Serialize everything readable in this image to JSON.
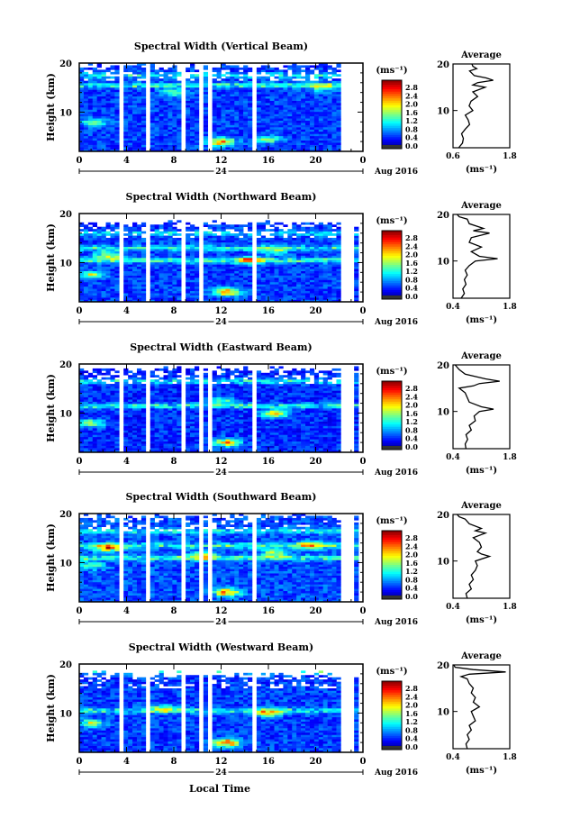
{
  "figure": {
    "xlabel": "Local Time",
    "date_label": "Aug 2016",
    "day_marker": "24",
    "ylabel": "Height (km)",
    "colorbar_unit": "(ms⁻¹)",
    "avg_title": "Average",
    "avg_xlabel": "(ms⁻¹)"
  },
  "chart_data": [
    {
      "type": "heatmap",
      "title": "Spectral Width (Vertical Beam)",
      "xlabel": "",
      "ylabel": "Height (km)",
      "x_ticks": [
        "0",
        "4",
        "8",
        "12",
        "16",
        "20",
        "0"
      ],
      "xlim": [
        0,
        24
      ],
      "ylim": [
        2,
        20
      ],
      "y_ticks": [
        "20",
        "10"
      ],
      "colorbar_ticks": [
        "2.8",
        "2.4",
        "2.0",
        "1.6",
        "1.2",
        "0.8",
        "0.4",
        "0.0"
      ],
      "colorbar_range": [
        0,
        3.0
      ],
      "gaps_hours": [
        [
          3.4,
          3.8
        ],
        [
          5.8,
          6.1
        ],
        [
          8.8,
          9.1
        ],
        [
          10.0,
          10.4
        ],
        [
          11.0,
          11.4
        ],
        [
          14.8,
          15.1
        ],
        [
          17.5,
          17.8
        ],
        [
          22.0,
          24.0
        ]
      ],
      "top_km": 19.5,
      "base": 0.55,
      "hot_spots": [
        {
          "t": 12.0,
          "h": 4.0,
          "v": 2.6
        },
        {
          "t": 16.0,
          "h": 4.5,
          "v": 1.6
        },
        {
          "t": 1.2,
          "h": 8.0,
          "v": 1.6
        },
        {
          "t": 8.0,
          "h": 14.0,
          "v": 1.4
        },
        {
          "t": 20.5,
          "h": 15.0,
          "v": 1.5
        }
      ],
      "layers": [
        {
          "h": 15.5,
          "v": 1.4
        },
        {
          "h": 17.5,
          "v": 1.1
        }
      ],
      "average": {
        "xlim": [
          0.6,
          1.8
        ],
        "x_ticks": [
          "0.6",
          "1.8"
        ],
        "y_ticks": [
          "20",
          "10"
        ],
        "profile": [
          [
            2,
            0.72
          ],
          [
            3,
            0.8
          ],
          [
            4,
            0.82
          ],
          [
            5,
            0.78
          ],
          [
            6,
            0.86
          ],
          [
            7,
            0.95
          ],
          [
            8,
            0.92
          ],
          [
            9,
            0.86
          ],
          [
            10,
            1.02
          ],
          [
            11,
            0.94
          ],
          [
            12,
            0.98
          ],
          [
            13,
            1.12
          ],
          [
            14,
            1.02
          ],
          [
            15,
            1.28
          ],
          [
            15.5,
            1.02
          ],
          [
            16,
            1.12
          ],
          [
            16.5,
            1.45
          ],
          [
            17,
            1.3
          ],
          [
            17.5,
            1.05
          ],
          [
            18,
            1.0
          ],
          [
            18.5,
            0.95
          ],
          [
            19,
            1.1
          ],
          [
            19.5,
            1.02
          ],
          [
            20,
            1.0
          ]
        ]
      }
    },
    {
      "type": "heatmap",
      "title": "Spectral Width (Northward Beam)",
      "xlabel": "",
      "ylabel": "Height (km)",
      "x_ticks": [
        "0",
        "4",
        "8",
        "12",
        "16",
        "20",
        "0"
      ],
      "xlim": [
        0,
        24
      ],
      "ylim": [
        2,
        20
      ],
      "y_ticks": [
        "20",
        "10"
      ],
      "colorbar_ticks": [
        "2.8",
        "2.4",
        "2.0",
        "1.6",
        "1.2",
        "0.8",
        "0.4",
        "0.0"
      ],
      "colorbar_range": [
        0,
        3.0
      ],
      "gaps_hours": [
        [
          3.4,
          3.8
        ],
        [
          5.8,
          6.1
        ],
        [
          8.8,
          9.1
        ],
        [
          10.0,
          10.4
        ],
        [
          14.8,
          15.1
        ],
        [
          17.5,
          17.8
        ],
        [
          22.0,
          23.2
        ],
        [
          23.8,
          24.0
        ]
      ],
      "top_km": 18.0,
      "base": 0.55,
      "hot_spots": [
        {
          "t": 12.5,
          "h": 4.0,
          "v": 2.6
        },
        {
          "t": 14.5,
          "h": 10.5,
          "v": 2.0
        },
        {
          "t": 1.0,
          "h": 7.5,
          "v": 1.8
        },
        {
          "t": 2.5,
          "h": 11.5,
          "v": 1.9
        },
        {
          "t": 16.5,
          "h": 12.5,
          "v": 1.6
        }
      ],
      "layers": [
        {
          "h": 10.5,
          "v": 1.5
        },
        {
          "h": 13.0,
          "v": 1.2
        },
        {
          "h": 16.0,
          "v": 1.0
        }
      ],
      "average": {
        "xlim": [
          0.4,
          1.8
        ],
        "x_ticks": [
          "0.4",
          "1.8"
        ],
        "y_ticks": [
          "20",
          "10"
        ],
        "profile": [
          [
            2,
            0.6
          ],
          [
            3,
            0.68
          ],
          [
            4,
            0.64
          ],
          [
            5,
            0.72
          ],
          [
            6,
            0.68
          ],
          [
            7,
            0.75
          ],
          [
            8,
            0.7
          ],
          [
            9,
            0.8
          ],
          [
            10,
            0.95
          ],
          [
            10.5,
            1.5
          ],
          [
            11,
            1.05
          ],
          [
            12,
            0.85
          ],
          [
            13,
            1.1
          ],
          [
            14,
            0.8
          ],
          [
            15,
            0.85
          ],
          [
            16,
            1.3
          ],
          [
            16.5,
            0.9
          ],
          [
            17,
            1.15
          ],
          [
            18,
            0.8
          ],
          [
            19,
            0.75
          ],
          [
            19.5,
            0.55
          ],
          [
            20,
            0.5
          ]
        ]
      }
    },
    {
      "type": "heatmap",
      "title": "Spectral Width (Eastward Beam)",
      "xlabel": "",
      "ylabel": "Height (km)",
      "x_ticks": [
        "0",
        "4",
        "8",
        "12",
        "16",
        "20",
        "0"
      ],
      "xlim": [
        0,
        24
      ],
      "ylim": [
        2,
        20
      ],
      "y_ticks": [
        "20",
        "10"
      ],
      "colorbar_ticks": [
        "2.8",
        "2.4",
        "2.0",
        "1.6",
        "1.2",
        "0.8",
        "0.4",
        "0.0"
      ],
      "colorbar_range": [
        0,
        3.0
      ],
      "gaps_hours": [
        [
          3.4,
          3.8
        ],
        [
          5.8,
          6.1
        ],
        [
          8.8,
          9.1
        ],
        [
          10.0,
          10.4
        ],
        [
          11.0,
          11.4
        ],
        [
          14.8,
          15.1
        ],
        [
          17.5,
          17.8
        ],
        [
          22.0,
          23.2
        ],
        [
          23.8,
          24.0
        ]
      ],
      "top_km": 19.0,
      "base": 0.5,
      "hot_spots": [
        {
          "t": 12.5,
          "h": 4.0,
          "v": 2.4
        },
        {
          "t": 16.5,
          "h": 10.0,
          "v": 2.2
        },
        {
          "t": 1.0,
          "h": 8.0,
          "v": 1.8
        },
        {
          "t": 12.0,
          "h": 12.5,
          "v": 1.5
        }
      ],
      "layers": [
        {
          "h": 11.5,
          "v": 1.3
        },
        {
          "h": 16.5,
          "v": 1.2
        }
      ],
      "average": {
        "xlim": [
          0.4,
          1.8
        ],
        "x_ticks": [
          "0.4",
          "1.8"
        ],
        "y_ticks": [
          "20",
          "10"
        ],
        "profile": [
          [
            2,
            0.72
          ],
          [
            3,
            0.7
          ],
          [
            4,
            0.76
          ],
          [
            5,
            0.72
          ],
          [
            6,
            0.85
          ],
          [
            7,
            0.8
          ],
          [
            8,
            0.95
          ],
          [
            9,
            0.92
          ],
          [
            10,
            1.05
          ],
          [
            10.5,
            1.4
          ],
          [
            11,
            1.1
          ],
          [
            12,
            0.8
          ],
          [
            13,
            0.75
          ],
          [
            14,
            0.7
          ],
          [
            15,
            0.55
          ],
          [
            15.5,
            0.9
          ],
          [
            16,
            1.05
          ],
          [
            16.5,
            1.55
          ],
          [
            17,
            1.2
          ],
          [
            18,
            0.7
          ],
          [
            19,
            0.55
          ],
          [
            20,
            0.45
          ]
        ]
      }
    },
    {
      "type": "heatmap",
      "title": "Spectral Width (Southward Beam)",
      "xlabel": "",
      "ylabel": "Height (km)",
      "x_ticks": [
        "0",
        "4",
        "8",
        "12",
        "16",
        "20",
        "0"
      ],
      "xlim": [
        0,
        24
      ],
      "ylim": [
        2,
        20
      ],
      "y_ticks": [
        "20",
        "10"
      ],
      "colorbar_ticks": [
        "2.8",
        "2.4",
        "2.0",
        "1.6",
        "1.2",
        "0.8",
        "0.4",
        "0.0"
      ],
      "colorbar_range": [
        0,
        3.0
      ],
      "gaps_hours": [
        [
          3.4,
          3.8
        ],
        [
          5.8,
          6.1
        ],
        [
          8.8,
          9.1
        ],
        [
          10.0,
          10.4
        ],
        [
          11.0,
          11.4
        ],
        [
          14.8,
          15.1
        ],
        [
          17.5,
          17.8
        ],
        [
          22.0,
          23.2
        ],
        [
          23.8,
          24.0
        ]
      ],
      "top_km": 19.5,
      "base": 0.6,
      "hot_spots": [
        {
          "t": 12.5,
          "h": 4.0,
          "v": 2.4
        },
        {
          "t": 2.5,
          "h": 13.0,
          "v": 2.3
        },
        {
          "t": 19.5,
          "h": 13.5,
          "v": 1.9
        },
        {
          "t": 10.5,
          "h": 11.5,
          "v": 1.9
        },
        {
          "t": 16.5,
          "h": 12.0,
          "v": 1.8
        },
        {
          "t": 1.0,
          "h": 9.5,
          "v": 1.5
        }
      ],
      "layers": [
        {
          "h": 11.0,
          "v": 1.3
        },
        {
          "h": 13.5,
          "v": 1.3
        },
        {
          "h": 16.5,
          "v": 1.1
        }
      ],
      "average": {
        "xlim": [
          0.4,
          1.8
        ],
        "x_ticks": [
          "0.4",
          "1.8"
        ],
        "y_ticks": [
          "20",
          "10"
        ],
        "profile": [
          [
            2,
            0.75
          ],
          [
            3,
            0.72
          ],
          [
            4,
            0.85
          ],
          [
            5,
            0.8
          ],
          [
            6,
            0.9
          ],
          [
            7,
            0.85
          ],
          [
            8,
            0.95
          ],
          [
            9,
            1.0
          ],
          [
            10,
            0.95
          ],
          [
            11,
            1.3
          ],
          [
            11.5,
            1.1
          ],
          [
            12,
            1.0
          ],
          [
            13,
            1.1
          ],
          [
            14,
            1.05
          ],
          [
            15,
            0.9
          ],
          [
            16,
            1.2
          ],
          [
            16.5,
            0.95
          ],
          [
            17,
            1.1
          ],
          [
            18,
            0.8
          ],
          [
            19,
            0.7
          ],
          [
            19.5,
            0.55
          ],
          [
            20,
            0.5
          ]
        ]
      }
    },
    {
      "type": "heatmap",
      "title": "Spectral Width (Westward Beam)",
      "xlabel": "Local Time",
      "ylabel": "Height (km)",
      "x_ticks": [
        "0",
        "4",
        "8",
        "12",
        "16",
        "20",
        "0"
      ],
      "xlim": [
        0,
        24
      ],
      "ylim": [
        2,
        20
      ],
      "y_ticks": [
        "20",
        "10"
      ],
      "colorbar_ticks": [
        "2.8",
        "2.4",
        "2.0",
        "1.6",
        "1.2",
        "0.8",
        "0.4",
        "0.0"
      ],
      "colorbar_range": [
        0,
        3.0
      ],
      "gaps_hours": [
        [
          3.4,
          3.8
        ],
        [
          5.8,
          6.1
        ],
        [
          8.8,
          9.1
        ],
        [
          10.0,
          10.4
        ],
        [
          11.0,
          11.4
        ],
        [
          14.8,
          15.1
        ],
        [
          17.5,
          17.8
        ],
        [
          22.0,
          23.2
        ],
        [
          23.8,
          24.0
        ]
      ],
      "top_km": 18.0,
      "base": 0.55,
      "hot_spots": [
        {
          "t": 12.5,
          "h": 4.0,
          "v": 2.6
        },
        {
          "t": 16.0,
          "h": 10.0,
          "v": 2.0
        },
        {
          "t": 1.0,
          "h": 8.0,
          "v": 1.8
        },
        {
          "t": 7.0,
          "h": 11.0,
          "v": 1.6
        }
      ],
      "layers": [
        {
          "h": 10.5,
          "v": 1.3
        },
        {
          "h": 18.5,
          "v": 1.3
        }
      ],
      "average": {
        "xlim": [
          0.4,
          1.8
        ],
        "x_ticks": [
          "0.4",
          "1.8"
        ],
        "y_ticks": [
          "20",
          "10"
        ],
        "profile": [
          [
            2,
            0.75
          ],
          [
            3,
            0.72
          ],
          [
            4,
            0.8
          ],
          [
            5,
            0.75
          ],
          [
            6,
            0.85
          ],
          [
            7,
            0.8
          ],
          [
            8,
            0.95
          ],
          [
            9,
            0.9
          ],
          [
            10,
            0.85
          ],
          [
            11,
            1.05
          ],
          [
            12,
            0.9
          ],
          [
            13,
            0.95
          ],
          [
            14,
            0.85
          ],
          [
            15,
            0.9
          ],
          [
            16,
            0.8
          ],
          [
            17,
            0.75
          ],
          [
            17.5,
            0.6
          ],
          [
            18,
            0.8
          ],
          [
            18.5,
            1.7
          ],
          [
            19,
            0.9
          ],
          [
            19.5,
            0.45
          ],
          [
            20,
            0.42
          ]
        ]
      }
    }
  ]
}
